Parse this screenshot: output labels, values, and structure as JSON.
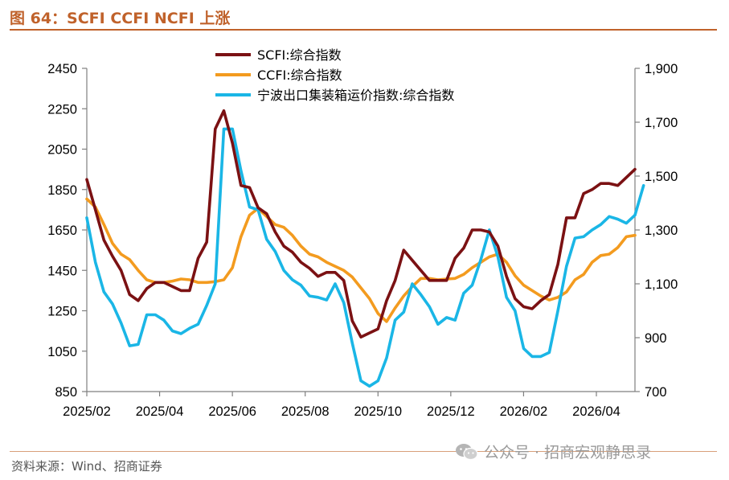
{
  "header": {
    "title": "图 64：SCFI CCFI NCFI 上涨"
  },
  "footer": {
    "source": "资料来源：Wind、招商证券"
  },
  "watermark": {
    "icon": "wechat-icon",
    "text": "公众号 · 招商宏观静思录"
  },
  "chart_data": {
    "type": "line",
    "title": "",
    "x_tick_labels": [
      "2025/02",
      "2025/04",
      "2025/06",
      "2025/08",
      "2025/10",
      "2025/12",
      "2026/02",
      "2026/04"
    ],
    "left_axis": {
      "ylim": [
        850,
        2450
      ],
      "ticks": [
        850,
        1050,
        1250,
        1450,
        1650,
        1850,
        2050,
        2250,
        2450
      ]
    },
    "right_axis": {
      "ylim": [
        700,
        1900
      ],
      "ticks": [
        "700",
        "900",
        "1,100",
        "1,300",
        "1,500",
        "1,700",
        "1,900"
      ]
    },
    "grid": false,
    "legend_position": "top-center",
    "series": [
      {
        "name": "SCFI:综合指数",
        "axis": "left",
        "color": "#7b1113",
        "values": [
          1900,
          1750,
          1600,
          1520,
          1450,
          1330,
          1300,
          1360,
          1390,
          1390,
          1370,
          1350,
          1350,
          1510,
          1590,
          2150,
          2240,
          2080,
          1870,
          1860,
          1760,
          1730,
          1640,
          1570,
          1540,
          1490,
          1460,
          1420,
          1440,
          1440,
          1400,
          1200,
          1120,
          1140,
          1160,
          1300,
          1400,
          1550,
          1500,
          1450,
          1400,
          1400,
          1400,
          1510,
          1560,
          1650,
          1650,
          1640,
          1570,
          1420,
          1310,
          1270,
          1260,
          1300,
          1330,
          1480,
          1710,
          1710,
          1830,
          1850,
          1880,
          1880,
          1870,
          1910,
          1950
        ]
      },
      {
        "name": "CCFI:综合指数",
        "axis": "right",
        "color": "#f39b1f",
        "values": [
          1415,
          1385,
          1320,
          1250,
          1210,
          1190,
          1150,
          1115,
          1105,
          1105,
          1110,
          1118,
          1115,
          1105,
          1105,
          1108,
          1115,
          1160,
          1275,
          1355,
          1380,
          1350,
          1320,
          1310,
          1280,
          1240,
          1210,
          1200,
          1180,
          1165,
          1150,
          1125,
          1085,
          1045,
          990,
          960,
          1010,
          1055,
          1090,
          1120,
          1120,
          1115,
          1118,
          1120,
          1135,
          1160,
          1180,
          1200,
          1210,
          1180,
          1130,
          1095,
          1075,
          1055,
          1040,
          1050,
          1070,
          1115,
          1135,
          1180,
          1205,
          1210,
          1235,
          1275,
          1280
        ]
      },
      {
        "name": "宁波出口集装箱运价指数:综合指数",
        "axis": "right",
        "color": "#1ab6e6",
        "values": [
          1345,
          1180,
          1070,
          1025,
          955,
          870,
          875,
          985,
          985,
          965,
          925,
          915,
          935,
          950,
          1020,
          1100,
          1675,
          1675,
          1520,
          1385,
          1375,
          1265,
          1220,
          1150,
          1115,
          1095,
          1055,
          1050,
          1040,
          1100,
          1030,
          880,
          740,
          720,
          740,
          825,
          965,
          995,
          1100,
          1060,
          1015,
          950,
          975,
          965,
          1065,
          1095,
          1190,
          1300,
          1200,
          1050,
          1000,
          860,
          830,
          830,
          845,
          1000,
          1165,
          1270,
          1275,
          1300,
          1320,
          1350,
          1340,
          1325,
          1355,
          1465
        ]
      }
    ]
  }
}
